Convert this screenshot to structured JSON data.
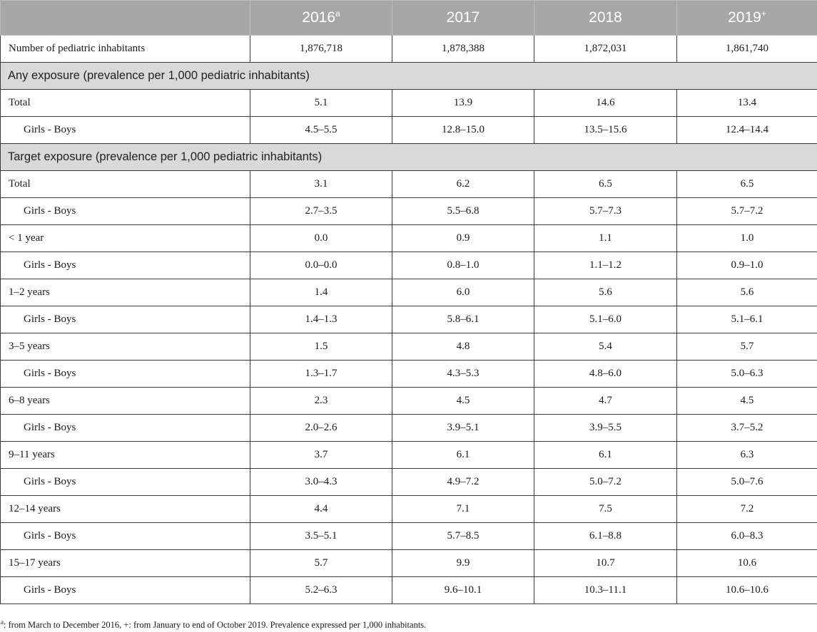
{
  "header": {
    "corner": "",
    "years": [
      {
        "label": "2016",
        "mark": "a"
      },
      {
        "label": "2017",
        "mark": ""
      },
      {
        "label": "2018",
        "mark": ""
      },
      {
        "label": "2019",
        "mark": "+"
      }
    ]
  },
  "rows": [
    {
      "kind": "data",
      "indent": false,
      "label": "Number of pediatric inhabitants",
      "values": [
        "1,876,718",
        "1,878,388",
        "1,872,031",
        "1,861,740"
      ]
    },
    {
      "kind": "section",
      "label": "Any exposure (prevalence per 1,000 pediatric inhabitants)"
    },
    {
      "kind": "data",
      "indent": false,
      "label": "Total",
      "values": [
        "5.1",
        "13.9",
        "14.6",
        "13.4"
      ]
    },
    {
      "kind": "data",
      "indent": true,
      "label": "Girls - Boys",
      "values": [
        "4.5–5.5",
        "12.8–15.0",
        "13.5–15.6",
        "12.4–14.4"
      ]
    },
    {
      "kind": "section",
      "label": "Target exposure (prevalence per 1,000 pediatric inhabitants)"
    },
    {
      "kind": "data",
      "indent": false,
      "label": "Total",
      "values": [
        "3.1",
        "6.2",
        "6.5",
        "6.5"
      ]
    },
    {
      "kind": "data",
      "indent": true,
      "label": "Girls - Boys",
      "values": [
        "2.7–3.5",
        "5.5–6.8",
        "5.7–7.3",
        "5.7–7.2"
      ]
    },
    {
      "kind": "data",
      "indent": false,
      "label": "< 1 year",
      "values": [
        "0.0",
        "0.9",
        "1.1",
        "1.0"
      ]
    },
    {
      "kind": "data",
      "indent": true,
      "label": "Girls - Boys",
      "values": [
        "0.0–0.0",
        "0.8–1.0",
        "1.1–1.2",
        "0.9–1.0"
      ]
    },
    {
      "kind": "data",
      "indent": false,
      "label": "1–2 years",
      "values": [
        "1.4",
        "6.0",
        "5.6",
        "5.6"
      ]
    },
    {
      "kind": "data",
      "indent": true,
      "label": "Girls - Boys",
      "values": [
        "1.4–1.3",
        "5.8–6.1",
        "5.1–6.0",
        "5.1–6.1"
      ]
    },
    {
      "kind": "data",
      "indent": false,
      "label": "3–5 years",
      "values": [
        "1.5",
        "4.8",
        "5.4",
        "5.7"
      ]
    },
    {
      "kind": "data",
      "indent": true,
      "label": "Girls - Boys",
      "values": [
        "1.3–1.7",
        "4.3–5.3",
        "4.8–6.0",
        "5.0–6.3"
      ]
    },
    {
      "kind": "data",
      "indent": false,
      "label": "6–8 years",
      "values": [
        "2.3",
        "4.5",
        "4.7",
        "4.5"
      ]
    },
    {
      "kind": "data",
      "indent": true,
      "label": "Girls - Boys",
      "values": [
        "2.0–2.6",
        "3.9–5.1",
        "3.9–5.5",
        "3.7–5.2"
      ]
    },
    {
      "kind": "data",
      "indent": false,
      "label": "9–11 years",
      "values": [
        "3.7",
        "6.1",
        "6.1",
        "6.3"
      ]
    },
    {
      "kind": "data",
      "indent": true,
      "label": "Girls - Boys",
      "values": [
        "3.0–4.3",
        "4.9–7.2",
        "5.0–7.2",
        "5.0–7.6"
      ]
    },
    {
      "kind": "data",
      "indent": false,
      "label": "12–14 years",
      "values": [
        "4.4",
        "7.1",
        "7.5",
        "7.2"
      ]
    },
    {
      "kind": "data",
      "indent": true,
      "label": "Girls - Boys",
      "values": [
        "3.5–5.1",
        "5.7–8.5",
        "6.1–8.8",
        "6.0–8.3"
      ]
    },
    {
      "kind": "data",
      "indent": false,
      "label": "15–17 years",
      "values": [
        "5.7",
        "9.9",
        "10.7",
        "10.6"
      ]
    },
    {
      "kind": "data",
      "indent": true,
      "label": "Girls - Boys",
      "values": [
        "5.2–6.3",
        "9.6–10.1",
        "10.3–11.1",
        "10.6–10.6"
      ]
    }
  ],
  "footnote": {
    "mark": "a",
    "text": ": from March to December 2016, +: from January to end of October 2019. Prevalence expressed per 1,000 inhabitants."
  }
}
